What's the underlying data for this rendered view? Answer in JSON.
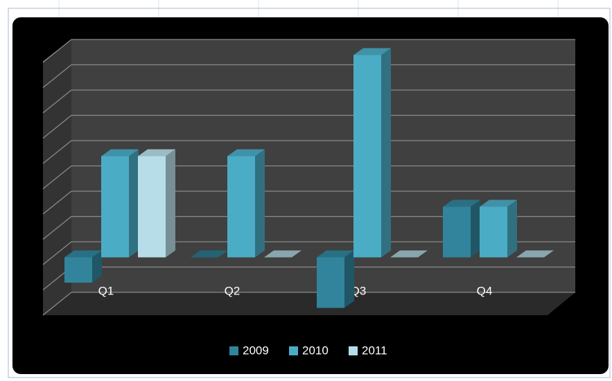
{
  "chart_data": {
    "type": "bar3d",
    "categories": [
      "Q1",
      "Q2",
      "Q3",
      "Q4"
    ],
    "series": [
      {
        "name": "2009",
        "color": "#31849b",
        "values": [
          -1,
          0,
          -2,
          2
        ]
      },
      {
        "name": "2010",
        "color": "#4bacc6",
        "values": [
          4,
          4,
          8,
          2
        ]
      },
      {
        "name": "2011",
        "color": "#b7dde8",
        "values": [
          4,
          0,
          0,
          0
        ]
      }
    ],
    "ylim": [
      -1,
      9
    ],
    "yticks": [
      -1,
      0,
      1,
      2,
      3,
      4,
      5,
      6,
      7,
      8,
      9
    ],
    "grid": true,
    "legend": "bottom"
  }
}
